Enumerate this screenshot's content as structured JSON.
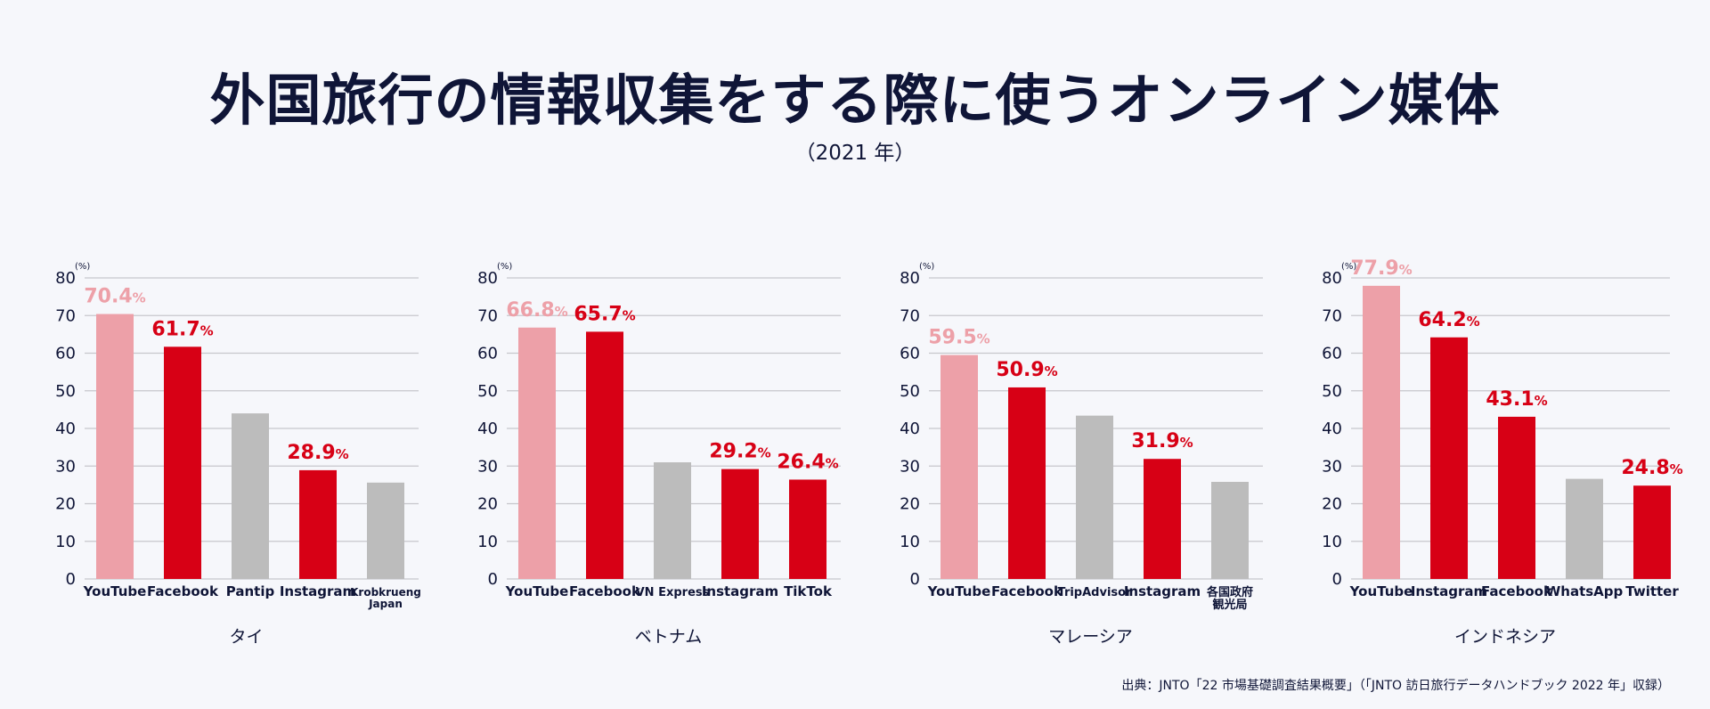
{
  "header": {
    "title": "外国旅行の情報収集をする際に使うオンライン媒体",
    "subtitle": "（2021 年）"
  },
  "footer": {
    "source": "出典：JNTO「22 市場基礎調査結果概要」（「JNTO 訪日旅行データハンドブック 2022 年」収録）"
  },
  "colors": {
    "pink": "#eda0a8",
    "red": "#d70015",
    "gray": "#bcbcbc",
    "grid": "#c7c7cc",
    "axis_text": "#0f1537"
  },
  "chart_data": [
    {
      "type": "bar",
      "country": "タイ",
      "unit_label": "(%)",
      "ylim": [
        0,
        80
      ],
      "yticks": [
        0,
        10,
        20,
        30,
        40,
        50,
        60,
        70,
        80
      ],
      "grid": true,
      "categories": [
        "YouTube",
        "Facebook",
        "Pantip",
        "Instagram",
        "Krobkrueng Japan"
      ],
      "values": [
        70.4,
        61.7,
        44.0,
        28.9,
        25.6
      ],
      "bar_colors": [
        "pink",
        "red",
        "gray",
        "red",
        "gray"
      ],
      "labels": [
        "70.4",
        "61.7",
        "",
        "28.9",
        ""
      ]
    },
    {
      "type": "bar",
      "country": "ベトナム",
      "unit_label": "(%)",
      "ylim": [
        0,
        80
      ],
      "yticks": [
        0,
        10,
        20,
        30,
        40,
        50,
        60,
        70,
        80
      ],
      "grid": true,
      "categories": [
        "YouTube",
        "Facebook",
        "VN Express",
        "Instagram",
        "TikTok"
      ],
      "values": [
        66.8,
        65.7,
        31.0,
        29.2,
        26.4
      ],
      "bar_colors": [
        "pink",
        "red",
        "gray",
        "red",
        "red"
      ],
      "labels": [
        "66.8",
        "65.7",
        "",
        "29.2",
        "26.4"
      ]
    },
    {
      "type": "bar",
      "country": "マレーシア",
      "unit_label": "(%)",
      "ylim": [
        0,
        80
      ],
      "yticks": [
        0,
        10,
        20,
        30,
        40,
        50,
        60,
        70,
        80
      ],
      "grid": true,
      "categories": [
        "YouTube",
        "Facebook",
        "TripAdvisor",
        "Instagram",
        "各国政府観光局"
      ],
      "values": [
        59.5,
        50.9,
        43.4,
        31.9,
        25.8
      ],
      "bar_colors": [
        "pink",
        "red",
        "gray",
        "red",
        "gray"
      ],
      "labels": [
        "59.5",
        "50.9",
        "",
        "31.9",
        ""
      ]
    },
    {
      "type": "bar",
      "country": "インドネシア",
      "unit_label": "(%)",
      "ylim": [
        0,
        80
      ],
      "yticks": [
        0,
        10,
        20,
        30,
        40,
        50,
        60,
        70,
        80
      ],
      "grid": true,
      "categories": [
        "YouTube",
        "Instagram",
        "Facebook",
        "WhatsApp",
        "Twitter"
      ],
      "values": [
        77.9,
        64.2,
        43.1,
        26.6,
        24.8
      ],
      "bar_colors": [
        "pink",
        "red",
        "red",
        "gray",
        "red"
      ],
      "labels": [
        "77.9",
        "64.2",
        "43.1",
        "",
        "24.8"
      ]
    }
  ]
}
